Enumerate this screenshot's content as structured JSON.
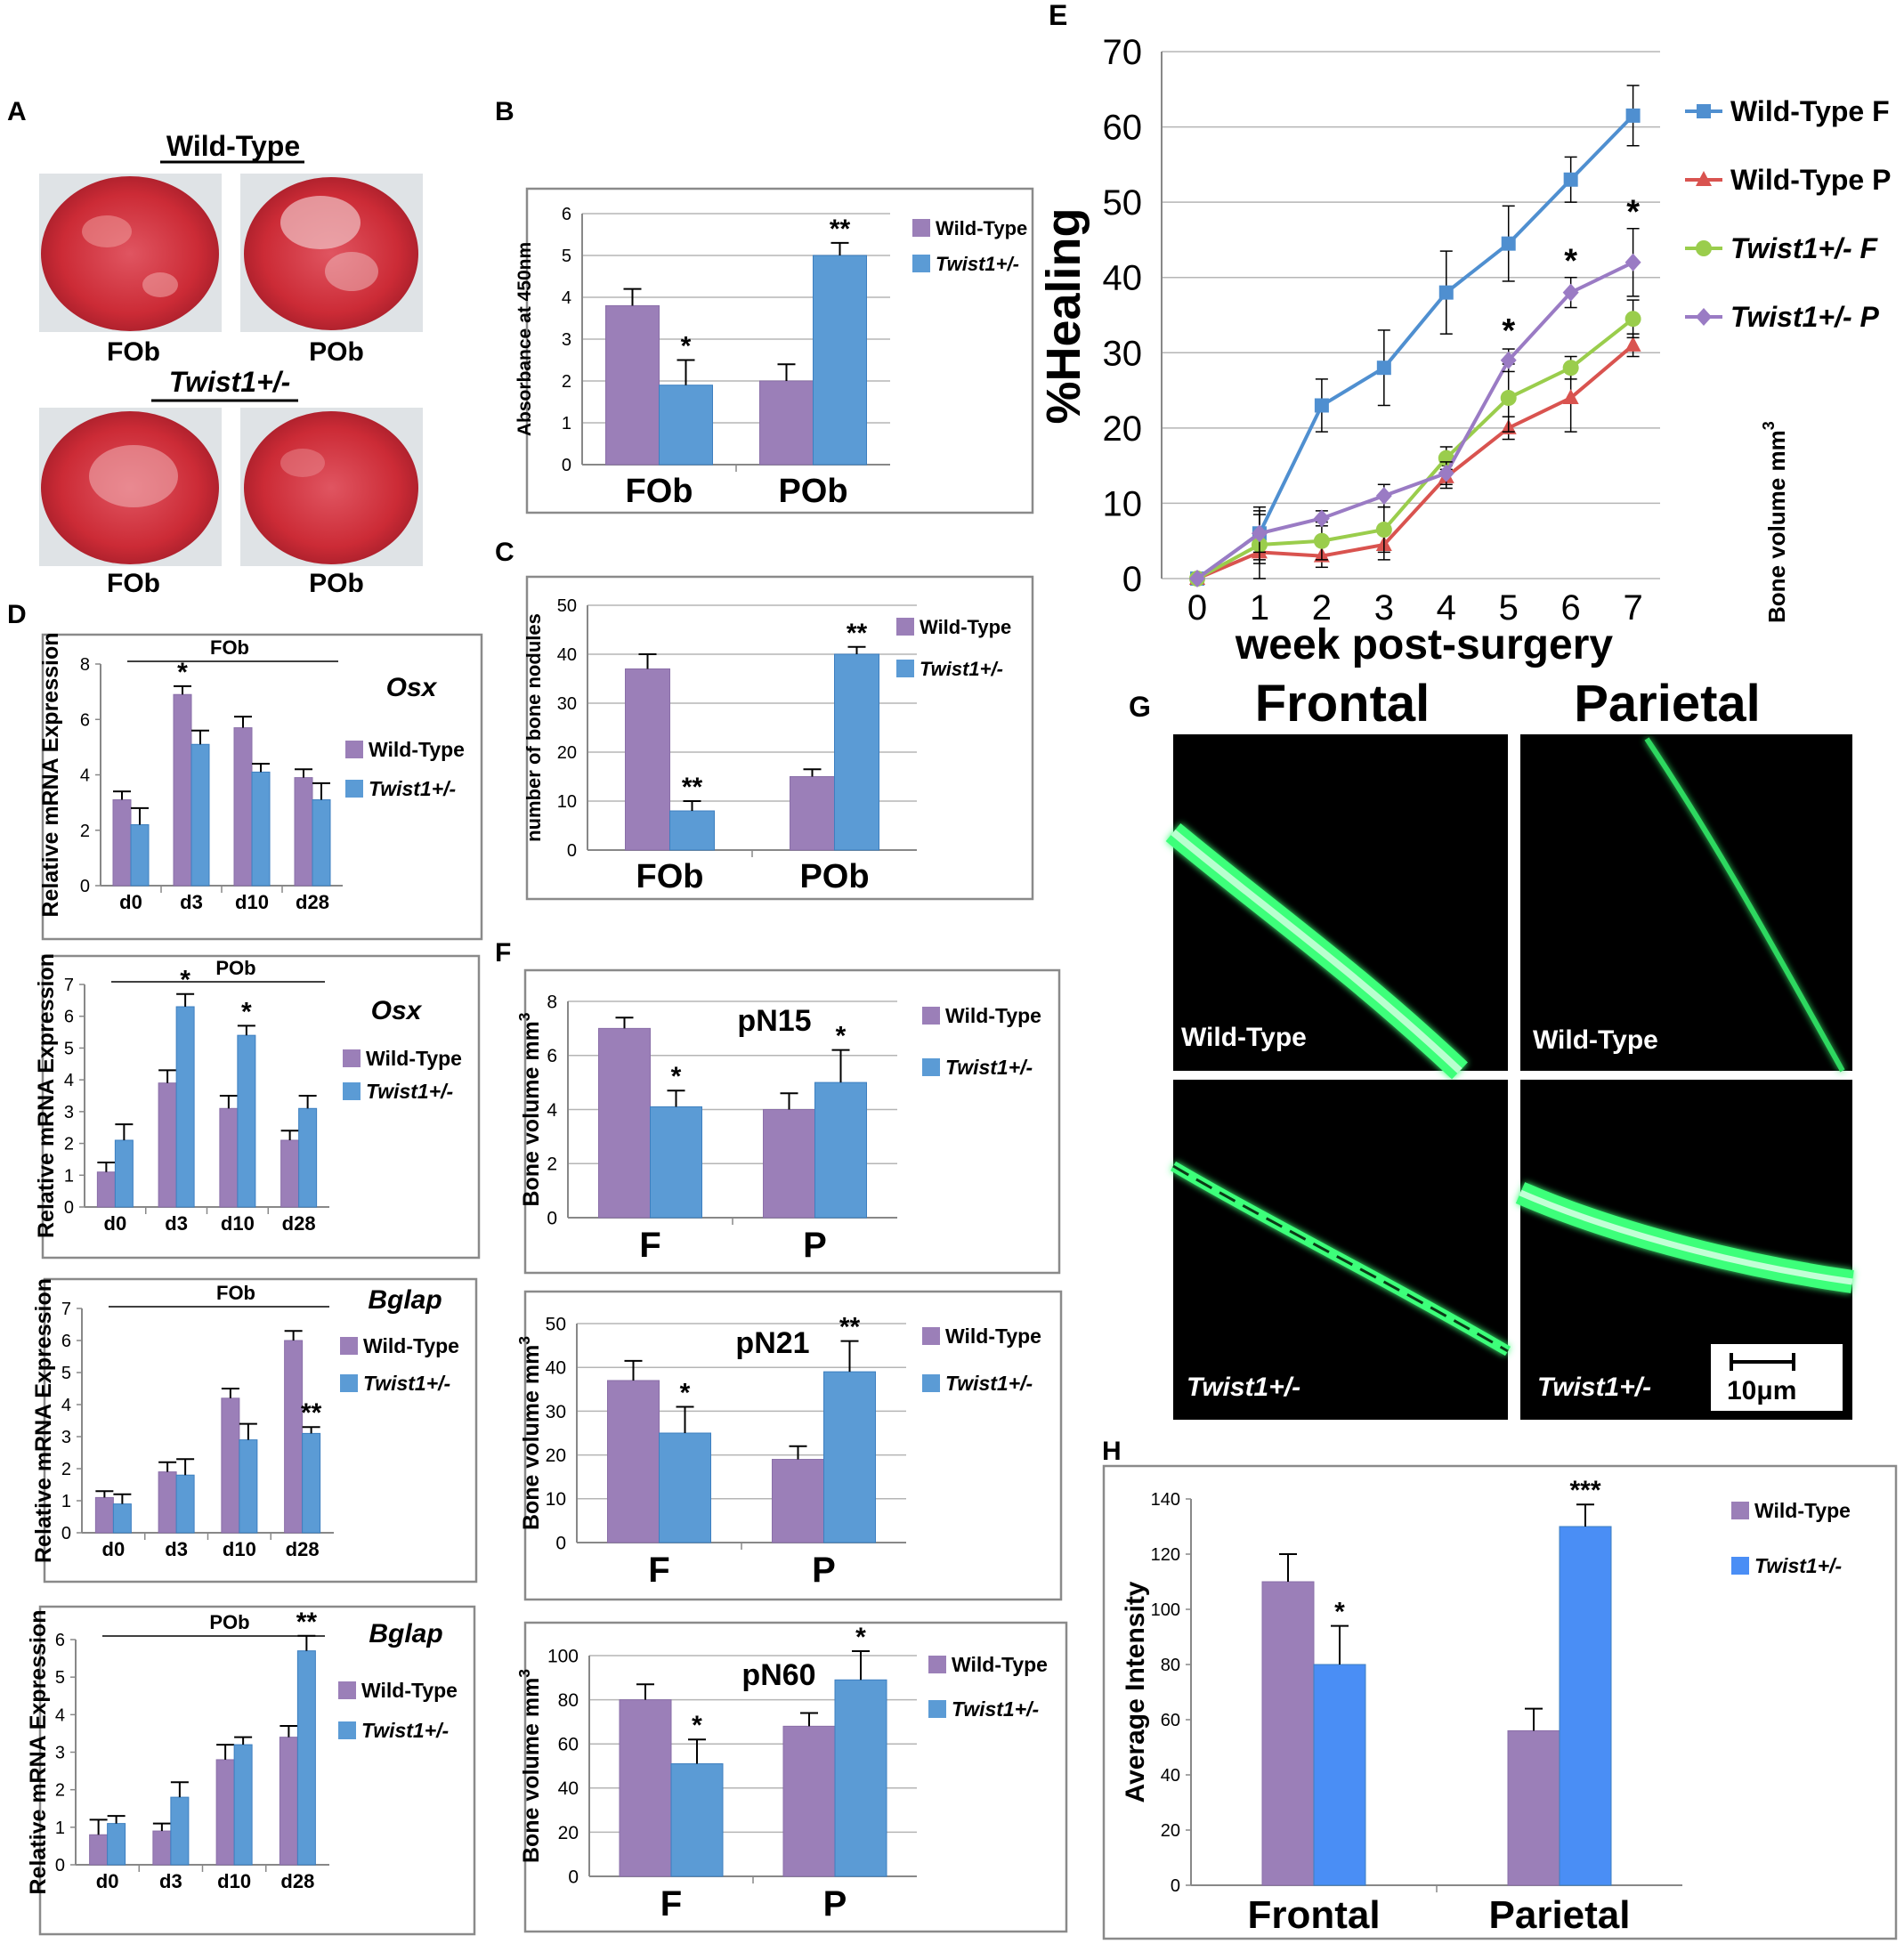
{
  "colors": {
    "wild_type": "#9b7fb8",
    "twist": "#5b9bd5",
    "twist_bright": "#4a8ef5",
    "line_wt_f": "#4f8fd0",
    "line_wt_p": "#d9534f",
    "line_tw_f": "#9acd4c",
    "line_tw_p": "#9a7bc4",
    "stain": "#cc2b36",
    "fluor": "#3dff7a"
  },
  "panels": {
    "A": {
      "letter": "A",
      "wt_title": "Wild-Type",
      "tw_title": "Twist1+/-",
      "labels": [
        "FOb",
        "POb",
        "FOb",
        "POb"
      ]
    },
    "G": {
      "letter": "G",
      "col_frontal": "Frontal",
      "col_parietal": "Parietal",
      "img_labels": [
        "Wild-Type",
        "Wild-Type",
        "Twist1+/-",
        "Twist1+/-"
      ],
      "scale_label": "10μm"
    },
    "E_extra_label": "Bone volume mm",
    "E_extra_sup": "3"
  },
  "chart_data": [
    {
      "id": "B",
      "letter": "B",
      "type": "bar",
      "categories": [
        "FOb",
        "POb"
      ],
      "series": [
        {
          "name": "Wild-Type",
          "values": [
            3.8,
            2.0
          ],
          "errors": [
            0.4,
            0.4
          ],
          "sig": [
            "",
            ""
          ]
        },
        {
          "name": "Twist1+/-",
          "values": [
            1.9,
            5.0
          ],
          "errors": [
            0.6,
            0.3
          ],
          "sig": [
            "*",
            "**"
          ]
        }
      ],
      "ylabel": "Absorbance at 450nm",
      "ylim": [
        0,
        6
      ],
      "yticks": [
        0,
        1,
        2,
        3,
        4,
        5,
        6
      ],
      "grid": true,
      "title": "",
      "gene": ""
    },
    {
      "id": "C",
      "letter": "C",
      "type": "bar",
      "categories": [
        "FOb",
        "POb"
      ],
      "series": [
        {
          "name": "Wild-Type",
          "values": [
            37,
            15
          ],
          "errors": [
            3,
            1.5
          ],
          "sig": [
            "",
            ""
          ]
        },
        {
          "name": "Twist1+/-",
          "values": [
            8,
            40
          ],
          "errors": [
            2,
            1.5
          ],
          "sig": [
            "**",
            "**"
          ]
        }
      ],
      "ylabel": "number of bone nodules",
      "ylim": [
        0,
        50
      ],
      "yticks": [
        0,
        10,
        20,
        30,
        40,
        50
      ],
      "grid": true,
      "title": "",
      "gene": ""
    },
    {
      "id": "D1",
      "letter": "D",
      "type": "bar",
      "categories": [
        "d0",
        "d3",
        "d10",
        "d28"
      ],
      "series": [
        {
          "name": "Wild-Type",
          "values": [
            3.1,
            6.9,
            5.7,
            3.9
          ],
          "errors": [
            0.3,
            0.3,
            0.4,
            0.3
          ],
          "sig": [
            "",
            "*",
            "",
            ""
          ]
        },
        {
          "name": "Twist1+/-",
          "values": [
            2.2,
            5.1,
            4.1,
            3.1
          ],
          "errors": [
            0.6,
            0.5,
            0.3,
            0.6
          ],
          "sig": [
            "",
            "",
            "",
            ""
          ]
        }
      ],
      "ylabel": "Relative mRNA Expression",
      "ylim": [
        0,
        8
      ],
      "yticks": [
        0,
        2,
        4,
        6,
        8
      ],
      "grid": false,
      "title": "FOb",
      "gene": "Osx"
    },
    {
      "id": "D2",
      "letter": "",
      "type": "bar",
      "categories": [
        "d0",
        "d3",
        "d10",
        "d28"
      ],
      "series": [
        {
          "name": "Wild-Type",
          "values": [
            1.1,
            3.9,
            3.1,
            2.1
          ],
          "errors": [
            0.3,
            0.4,
            0.4,
            0.3
          ],
          "sig": [
            "",
            "",
            "",
            ""
          ]
        },
        {
          "name": "Twist1+/-",
          "values": [
            2.1,
            6.3,
            5.4,
            3.1
          ],
          "errors": [
            0.5,
            0.4,
            0.3,
            0.4
          ],
          "sig": [
            "",
            "*",
            "*",
            ""
          ]
        }
      ],
      "ylabel": "Relative mRNA Expression",
      "ylim": [
        0,
        7
      ],
      "yticks": [
        0,
        1,
        2,
        3,
        4,
        5,
        6,
        7
      ],
      "grid": false,
      "title": "POb",
      "gene": "Osx"
    },
    {
      "id": "D3",
      "letter": "",
      "type": "bar",
      "categories": [
        "d0",
        "d3",
        "d10",
        "d28"
      ],
      "series": [
        {
          "name": "Wild-Type",
          "values": [
            1.1,
            1.9,
            4.2,
            6.0
          ],
          "errors": [
            0.2,
            0.3,
            0.3,
            0.3
          ],
          "sig": [
            "",
            "",
            "",
            ""
          ]
        },
        {
          "name": "Twist1+/-",
          "values": [
            0.9,
            1.8,
            2.9,
            3.1
          ],
          "errors": [
            0.3,
            0.5,
            0.5,
            0.2
          ],
          "sig": [
            "",
            "",
            "",
            "**"
          ]
        }
      ],
      "ylabel": "Relative mRNA Expression",
      "ylim": [
        0,
        7
      ],
      "yticks": [
        0,
        1,
        2,
        3,
        4,
        5,
        6,
        7
      ],
      "grid": false,
      "title": "FOb",
      "gene": "Bglap"
    },
    {
      "id": "D4",
      "letter": "",
      "type": "bar",
      "categories": [
        "d0",
        "d3",
        "d10",
        "d28"
      ],
      "series": [
        {
          "name": "Wild-Type",
          "values": [
            0.8,
            0.9,
            2.8,
            3.4
          ],
          "errors": [
            0.4,
            0.2,
            0.4,
            0.3
          ],
          "sig": [
            "",
            "",
            "",
            ""
          ]
        },
        {
          "name": "Twist1+/-",
          "values": [
            1.1,
            1.8,
            3.2,
            5.7
          ],
          "errors": [
            0.2,
            0.4,
            0.2,
            0.4
          ],
          "sig": [
            "",
            "",
            "",
            "**"
          ]
        }
      ],
      "ylabel": "Relative mRNA Expression",
      "ylim": [
        0,
        6
      ],
      "yticks": [
        0,
        1,
        2,
        3,
        4,
        5,
        6
      ],
      "grid": false,
      "title": "POb",
      "gene": "Bglap"
    },
    {
      "id": "F1",
      "letter": "F",
      "type": "bar",
      "categories": [
        "F",
        "P"
      ],
      "series": [
        {
          "name": "Wild-Type",
          "values": [
            7.0,
            4.0
          ],
          "errors": [
            0.4,
            0.6
          ],
          "sig": [
            "",
            ""
          ]
        },
        {
          "name": "Twist1+/-",
          "values": [
            4.1,
            5.0
          ],
          "errors": [
            0.6,
            1.2
          ],
          "sig": [
            "*",
            "*"
          ]
        }
      ],
      "ylabel": "Bone volume mm",
      "ylabel_sup": "3",
      "ylim": [
        0,
        8
      ],
      "yticks": [
        0,
        2,
        4,
        6,
        8
      ],
      "grid": true,
      "title": "pN15",
      "gene": ""
    },
    {
      "id": "F2",
      "letter": "",
      "type": "bar",
      "categories": [
        "F",
        "P"
      ],
      "series": [
        {
          "name": "Wild-Type",
          "values": [
            37,
            19
          ],
          "errors": [
            4.5,
            3
          ],
          "sig": [
            "",
            ""
          ]
        },
        {
          "name": "Twist1+/-",
          "values": [
            25,
            39
          ],
          "errors": [
            6,
            7
          ],
          "sig": [
            "*",
            "**"
          ]
        }
      ],
      "ylabel": "Bone volume mm",
      "ylabel_sup": "3",
      "ylim": [
        0,
        50
      ],
      "yticks": [
        0,
        10,
        20,
        30,
        40,
        50
      ],
      "grid": true,
      "title": "pN21",
      "gene": ""
    },
    {
      "id": "F3",
      "letter": "",
      "type": "bar",
      "categories": [
        "F",
        "P"
      ],
      "series": [
        {
          "name": "Wild-Type",
          "values": [
            80,
            68
          ],
          "errors": [
            7,
            6
          ],
          "sig": [
            "",
            ""
          ]
        },
        {
          "name": "Twist1+/-",
          "values": [
            51,
            89
          ],
          "errors": [
            11,
            13
          ],
          "sig": [
            "*",
            "*"
          ]
        }
      ],
      "ylabel": "Bone volume mm",
      "ylabel_sup": "3",
      "ylim": [
        0,
        100
      ],
      "yticks": [
        0,
        20,
        40,
        60,
        80,
        100
      ],
      "grid": true,
      "title": "pN60",
      "gene": ""
    },
    {
      "id": "H",
      "letter": "H",
      "type": "bar",
      "categories": [
        "Frontal",
        "Parietal"
      ],
      "series": [
        {
          "name": "Wild-Type",
          "values": [
            110,
            56
          ],
          "errors": [
            10,
            8
          ],
          "sig": [
            "",
            ""
          ]
        },
        {
          "name": "Twist1+/-",
          "values": [
            80,
            130
          ],
          "errors": [
            14,
            8
          ],
          "sig": [
            "*",
            "***"
          ]
        }
      ],
      "ylabel": "Average Intensity",
      "ylim": [
        0,
        140
      ],
      "yticks": [
        0,
        20,
        40,
        60,
        80,
        100,
        120,
        140
      ],
      "grid": false,
      "title": "",
      "gene": ""
    },
    {
      "id": "E",
      "letter": "E",
      "type": "line",
      "x": [
        0,
        1,
        2,
        3,
        4,
        5,
        6,
        7
      ],
      "series": [
        {
          "name": "Wild-Type F",
          "marker": "square",
          "values": [
            0,
            6,
            23,
            28,
            38,
            44.5,
            53,
            61.5
          ],
          "errors": [
            0,
            3.5,
            3.5,
            5,
            5.5,
            5,
            3,
            4
          ]
        },
        {
          "name": "Wild-Type P",
          "marker": "triangle",
          "values": [
            0,
            3.5,
            3,
            4.5,
            13.5,
            20,
            24,
            31
          ],
          "errors": [
            0,
            1.5,
            1.5,
            2,
            1.5,
            1.5,
            4.5,
            1.5
          ]
        },
        {
          "name": "Twist1+/- F",
          "marker": "circle",
          "values": [
            0,
            4.5,
            5,
            6.5,
            16,
            24,
            28,
            34.5
          ],
          "errors": [
            0,
            4.5,
            2.5,
            3,
            1.5,
            4.5,
            1.5,
            2.5
          ]
        },
        {
          "name": "Twist1+/- P",
          "marker": "diamond",
          "values": [
            0,
            6,
            8,
            11,
            14,
            29,
            38,
            42
          ],
          "errors": [
            0,
            2.5,
            1,
            1.5,
            1.5,
            1.5,
            2,
            4.5
          ]
        }
      ],
      "sig": [
        {
          "x": 5,
          "label": "*"
        },
        {
          "x": 6,
          "label": "*"
        },
        {
          "x": 7,
          "label": "*"
        }
      ],
      "xlabel": "week post-surgery",
      "ylabel": "%Healing",
      "ylim": [
        0,
        70
      ],
      "yticks": [
        0,
        10,
        20,
        30,
        40,
        50,
        60,
        70
      ],
      "grid": true
    }
  ]
}
